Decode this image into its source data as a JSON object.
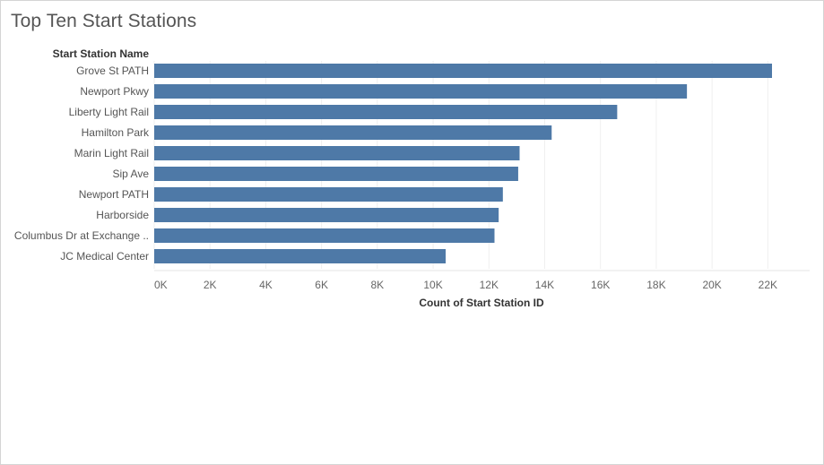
{
  "chart_data": {
    "type": "bar",
    "orientation": "horizontal",
    "title": "Top Ten Start Stations",
    "ylabel": "Start Station Name",
    "xlabel": "Count of Start Station ID",
    "categories": [
      "Grove St PATH",
      "Newport Pkwy",
      "Liberty Light Rail",
      "Hamilton Park",
      "Marin Light Rail",
      "Sip Ave",
      "Newport PATH",
      "Harborside",
      "Columbus Dr at Exchange ..",
      "JC Medical Center"
    ],
    "values": [
      22150,
      19100,
      16600,
      14250,
      13100,
      13050,
      12500,
      12350,
      12200,
      10450
    ],
    "xlim": [
      0,
      23500
    ],
    "xticks": [
      0,
      2000,
      4000,
      6000,
      8000,
      10000,
      12000,
      14000,
      16000,
      18000,
      20000,
      22000
    ],
    "xtick_labels": [
      "0K",
      "2K",
      "4K",
      "6K",
      "8K",
      "10K",
      "12K",
      "14K",
      "16K",
      "18K",
      "20K",
      "22K"
    ],
    "bar_color": "#4e79a7",
    "grid": "vertical",
    "grid_color": "#efefef"
  }
}
